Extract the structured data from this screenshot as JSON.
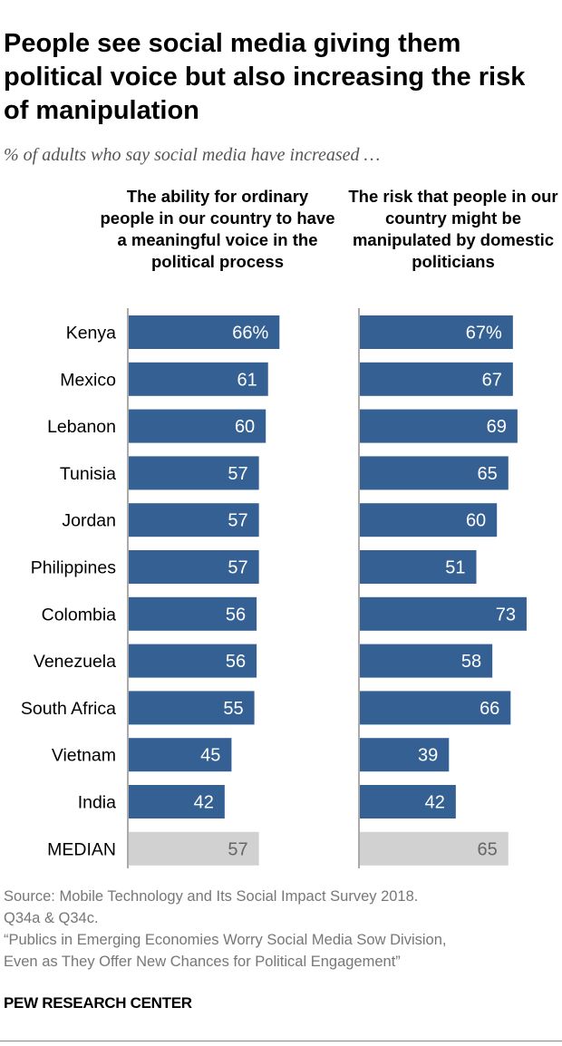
{
  "chart_data": {
    "type": "bar",
    "orientation": "horizontal",
    "title": "People see social media giving them political voice but also increasing the risk of manipulation",
    "subtitle": "% of adults who say social media have increased …",
    "categories": [
      "Kenya",
      "Mexico",
      "Lebanon",
      "Tunisia",
      "Jordan",
      "Philippines",
      "Colombia",
      "Venezuela",
      "South Africa",
      "Vietnam",
      "India",
      "MEDIAN"
    ],
    "series": [
      {
        "name": "The ability for ordinary people in our country to have a meaningful voice in the political process",
        "values": [
          66,
          61,
          60,
          57,
          57,
          57,
          56,
          56,
          55,
          45,
          42,
          57
        ]
      },
      {
        "name": "The risk that people in our country might be manipulated by domestic politicians",
        "values": [
          67,
          67,
          69,
          65,
          60,
          51,
          73,
          58,
          66,
          39,
          42,
          65
        ]
      }
    ],
    "value_suffix_first": "%",
    "xlim": [
      0,
      100
    ],
    "colors": {
      "bar": "#346093",
      "median": "#d1d1d1",
      "median_text": "#666666"
    }
  },
  "footer": {
    "source_lines": [
      "Source: Mobile Technology and Its Social Impact Survey 2018.",
      "Q34a & Q34c.",
      "“Publics in Emerging Economies Worry Social Media Sow Division,",
      "Even as They Offer New Chances for Political Engagement”"
    ],
    "logo": "PEW RESEARCH CENTER"
  }
}
